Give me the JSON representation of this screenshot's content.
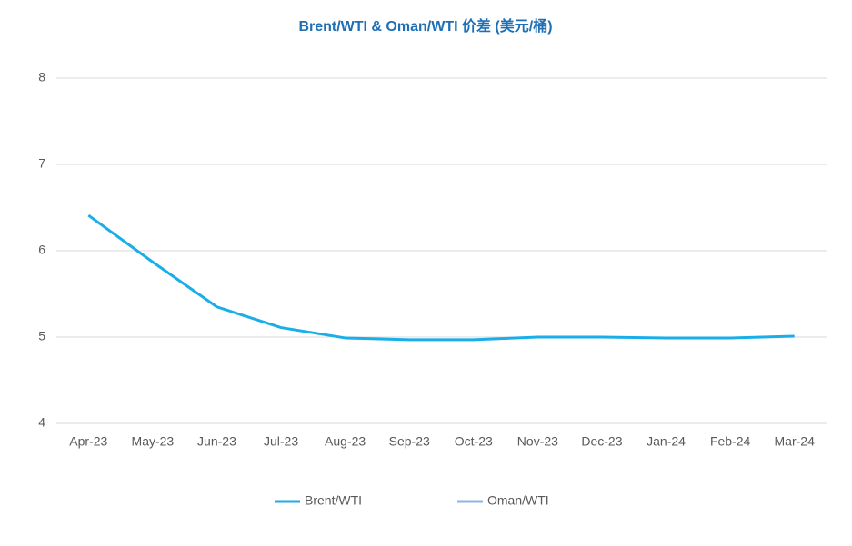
{
  "chart_data": {
    "type": "line",
    "title": "Brent/WTI & Oman/WTI 价差 (美元/桶)",
    "categories": [
      "Apr-23",
      "May-23",
      "Jun-23",
      "Jul-23",
      "Aug-23",
      "Sep-23",
      "Oct-23",
      "Nov-23",
      "Dec-23",
      "Jan-24",
      "Feb-24",
      "Mar-24"
    ],
    "series": [
      {
        "name": "Brent/WTI",
        "color": "#1aaee8",
        "values": [
          6.41,
          5.87,
          5.35,
          5.11,
          4.99,
          4.97,
          4.97,
          5.0,
          5.0,
          4.99,
          4.99,
          5.01
        ]
      },
      {
        "name": "Oman/WTI",
        "color": "#8eb4e3",
        "values": [
          null,
          null,
          null,
          null,
          null,
          null,
          null,
          null,
          null,
          null,
          null,
          null
        ]
      }
    ],
    "ylim": [
      4,
      8
    ],
    "yticks": [
      4,
      5,
      6,
      7,
      8
    ],
    "grid": true,
    "legend": "bottom"
  }
}
